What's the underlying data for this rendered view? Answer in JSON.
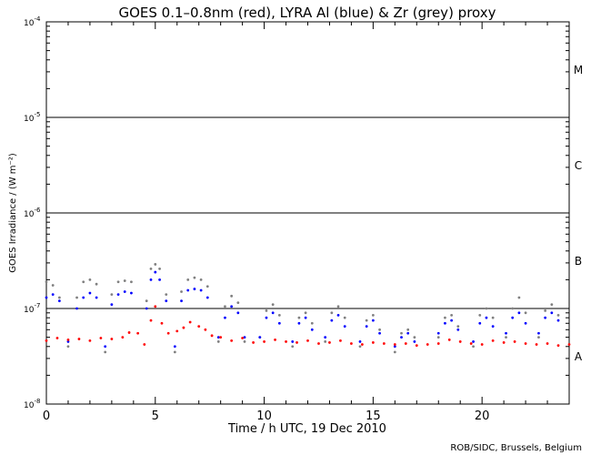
{
  "chart_data": {
    "type": "scatter",
    "title": "GOES 0.1–0.8nm (red), LYRA Al (blue) & Zr (grey) proxy",
    "xlabel": "Time / h UTC, 19 Dec 2010",
    "ylabel": "GOES Irradiance / (W m⁻²)",
    "credit": "ROB/SIDC, Brussels, Belgium",
    "xlim": [
      0,
      24
    ],
    "ylim": [
      1e-08,
      0.0001
    ],
    "yscale": "log",
    "x_ticks": [
      0,
      5,
      10,
      15,
      20
    ],
    "x_tick_labels": [
      "0",
      "5",
      "10",
      "15",
      "20"
    ],
    "y_ticks": [
      1e-08,
      1e-07,
      1e-06,
      1e-05,
      0.0001
    ],
    "y_tick_labels": [
      {
        "base": "10",
        "exp": "-8"
      },
      {
        "base": "10",
        "exp": "-7"
      },
      {
        "base": "10",
        "exp": "-6"
      },
      {
        "base": "10",
        "exp": "-5"
      },
      {
        "base": "10",
        "exp": "-4"
      }
    ],
    "class_levels": [
      1e-07,
      1e-06,
      1e-05
    ],
    "class_labels": [
      {
        "text": "A",
        "y": 3.2e-08
      },
      {
        "text": "B",
        "y": 3.2e-07
      },
      {
        "text": "C",
        "y": 3.2e-06
      },
      {
        "text": "M",
        "y": 3.2e-05
      }
    ],
    "grid": false,
    "colors": {
      "goes": "#ff0000",
      "lyra_al": "#0000ff",
      "lyra_zr": "#808080",
      "axis": "#000000"
    },
    "series": [
      {
        "name": "GOES 0.1–0.8nm",
        "color": "red",
        "x": [
          0.0,
          0.5,
          1.0,
          1.5,
          2.0,
          2.5,
          3.0,
          3.5,
          3.8,
          4.2,
          4.5,
          4.8,
          5.0,
          5.3,
          5.6,
          6.0,
          6.3,
          6.6,
          7.0,
          7.3,
          7.6,
          8.0,
          8.5,
          9.0,
          9.5,
          10.0,
          10.5,
          11.0,
          11.5,
          12.0,
          12.5,
          13.0,
          13.5,
          14.0,
          14.5,
          15.0,
          15.5,
          16.0,
          16.5,
          17.0,
          17.5,
          18.0,
          18.5,
          19.0,
          19.5,
          20.0,
          20.5,
          21.0,
          21.5,
          22.0,
          22.5,
          23.0,
          23.5,
          24.0
        ],
        "y": [
          4.6e-08,
          4.9e-08,
          4.7e-08,
          4.8e-08,
          4.6e-08,
          4.9e-08,
          4.8e-08,
          5e-08,
          5.6e-08,
          5.5e-08,
          4.2e-08,
          7.5e-08,
          1.05e-07,
          7e-08,
          5.5e-08,
          5.8e-08,
          6.3e-08,
          7.2e-08,
          6.5e-08,
          6e-08,
          5.2e-08,
          5e-08,
          4.6e-08,
          4.9e-08,
          4.4e-08,
          4.5e-08,
          4.7e-08,
          4.5e-08,
          4.4e-08,
          4.6e-08,
          4.3e-08,
          4.4e-08,
          4.6e-08,
          4.3e-08,
          4.2e-08,
          4.4e-08,
          4.3e-08,
          4.2e-08,
          4.3e-08,
          4.1e-08,
          4.2e-08,
          4.3e-08,
          4.7e-08,
          4.5e-08,
          4.3e-08,
          4.2e-08,
          4.6e-08,
          4.4e-08,
          4.5e-08,
          4.3e-08,
          4.2e-08,
          4.3e-08,
          4.1e-08,
          4.2e-08
        ]
      },
      {
        "name": "LYRA Al",
        "color": "blue",
        "x": [
          0.0,
          0.3,
          0.6,
          1.0,
          1.4,
          1.7,
          2.0,
          2.3,
          2.7,
          3.0,
          3.3,
          3.6,
          3.9,
          4.6,
          4.8,
          5.0,
          5.2,
          5.5,
          5.9,
          6.2,
          6.5,
          6.8,
          7.1,
          7.4,
          7.9,
          8.2,
          8.5,
          8.8,
          9.1,
          9.8,
          10.1,
          10.4,
          10.7,
          11.3,
          11.6,
          11.9,
          12.2,
          12.8,
          13.1,
          13.4,
          13.7,
          14.4,
          14.7,
          15.0,
          15.3,
          16.0,
          16.3,
          16.6,
          16.9,
          18.0,
          18.3,
          18.6,
          18.9,
          19.6,
          19.9,
          20.2,
          20.5,
          21.1,
          21.4,
          21.7,
          22.0,
          22.6,
          22.9,
          23.2,
          23.5
        ],
        "y": [
          1.3e-07,
          1.4e-07,
          1.2e-07,
          4.5e-08,
          1e-07,
          1.3e-07,
          1.45e-07,
          1.3e-07,
          4e-08,
          1.1e-07,
          1.4e-07,
          1.5e-07,
          1.45e-07,
          1e-07,
          2e-07,
          2.4e-07,
          2e-07,
          1.2e-07,
          4e-08,
          1.2e-07,
          1.55e-07,
          1.6e-07,
          1.55e-07,
          1.3e-07,
          5e-08,
          8e-08,
          1.05e-07,
          9e-08,
          5e-08,
          5e-08,
          8e-08,
          9e-08,
          7e-08,
          4.5e-08,
          7e-08,
          8e-08,
          6e-08,
          5e-08,
          7.5e-08,
          8.5e-08,
          6.5e-08,
          4.5e-08,
          6.5e-08,
          7.5e-08,
          5.5e-08,
          4e-08,
          5e-08,
          5.5e-08,
          4.5e-08,
          5.5e-08,
          7e-08,
          7.5e-08,
          6e-08,
          4.5e-08,
          7e-08,
          8e-08,
          6.5e-08,
          5.5e-08,
          8e-08,
          9e-08,
          7e-08,
          5.5e-08,
          8e-08,
          9e-08,
          7.5e-08
        ]
      },
      {
        "name": "LYRA Zr",
        "color": "grey",
        "x": [
          0.0,
          0.3,
          0.6,
          1.0,
          1.4,
          1.7,
          2.0,
          2.3,
          2.7,
          3.0,
          3.3,
          3.6,
          3.9,
          4.6,
          4.8,
          5.0,
          5.2,
          5.5,
          5.9,
          6.2,
          6.5,
          6.8,
          7.1,
          7.4,
          7.9,
          8.2,
          8.5,
          8.8,
          9.1,
          9.8,
          10.1,
          10.4,
          10.7,
          11.3,
          11.6,
          11.9,
          12.2,
          12.8,
          13.1,
          13.4,
          13.7,
          14.4,
          14.7,
          15.0,
          15.3,
          16.0,
          16.3,
          16.6,
          16.9,
          18.0,
          18.3,
          18.6,
          18.9,
          19.6,
          19.9,
          20.2,
          20.5,
          21.1,
          21.4,
          21.7,
          22.0,
          22.6,
          22.9,
          23.2,
          23.5
        ],
        "y": [
          1.9e-07,
          1.75e-07,
          1.3e-07,
          4e-08,
          1.3e-07,
          1.9e-07,
          2e-07,
          1.8e-07,
          3.5e-08,
          1.4e-07,
          1.9e-07,
          1.95e-07,
          1.9e-07,
          1.2e-07,
          2.6e-07,
          2.9e-07,
          2.6e-07,
          1.4e-07,
          3.5e-08,
          1.5e-07,
          2e-07,
          2.1e-07,
          2e-07,
          1.7e-07,
          4.5e-08,
          1.05e-07,
          1.35e-07,
          1.15e-07,
          4.5e-08,
          5e-08,
          9.5e-08,
          1.1e-07,
          8.5e-08,
          4e-08,
          8e-08,
          9e-08,
          7e-08,
          4.5e-08,
          9e-08,
          1.05e-07,
          8e-08,
          4e-08,
          7.5e-08,
          8.5e-08,
          6e-08,
          3.5e-08,
          5.5e-08,
          6e-08,
          5e-08,
          5e-08,
          8e-08,
          8.5e-08,
          6.5e-08,
          4e-08,
          8.5e-08,
          1e-07,
          8e-08,
          5e-08,
          1e-07,
          1.3e-07,
          9e-08,
          5e-08,
          9.5e-08,
          1.1e-07,
          8.5e-08
        ]
      }
    ]
  }
}
